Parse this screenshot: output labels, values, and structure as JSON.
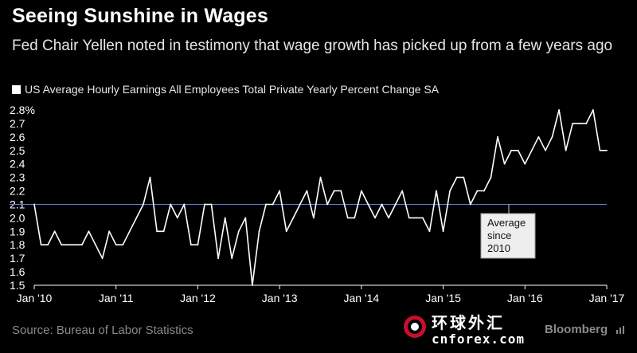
{
  "header": {
    "title": "Seeing Sunshine in Wages",
    "subtitle": "Fed Chair Yellen noted in testimony that wage growth has picked up from a few years ago"
  },
  "footer": {
    "source": "Source: Bureau of Labor Statistics",
    "brand": "Bloomberg"
  },
  "watermark": {
    "chinese": "环球外汇",
    "url": "cnforex.com"
  },
  "colors": {
    "background": "#000000",
    "line": "#ffffff",
    "average_line": "#5b7fd6",
    "text_muted": "#8a8a8a"
  },
  "chart_data": {
    "type": "line",
    "legend": "US Average Hourly Earnings All Employees Total Private Yearly Percent Change SA",
    "legend_position": "top-left",
    "grid": false,
    "x_tick_labels": [
      "Jan '10",
      "Jan '11",
      "Jan '12",
      "Jan '13",
      "Jan '14",
      "Jan '15",
      "Jan '16",
      "Jan '17"
    ],
    "y_tick_labels": [
      "1.5",
      "1.6",
      "1.7",
      "1.8",
      "1.9",
      "2.0",
      "2.1",
      "2.2",
      "2.3",
      "2.4",
      "2.5",
      "2.6",
      "2.7",
      "2.8%"
    ],
    "ylim": [
      1.5,
      2.8
    ],
    "xlim": [
      "2010-01",
      "2017-01"
    ],
    "series": [
      {
        "name": "US Average Hourly Earnings All Employees Total Private Yearly Percent Change SA",
        "x": [
          "2010-01",
          "2010-02",
          "2010-03",
          "2010-04",
          "2010-05",
          "2010-06",
          "2010-07",
          "2010-08",
          "2010-09",
          "2010-10",
          "2010-11",
          "2010-12",
          "2011-01",
          "2011-02",
          "2011-03",
          "2011-04",
          "2011-05",
          "2011-06",
          "2011-07",
          "2011-08",
          "2011-09",
          "2011-10",
          "2011-11",
          "2011-12",
          "2012-01",
          "2012-02",
          "2012-03",
          "2012-04",
          "2012-05",
          "2012-06",
          "2012-07",
          "2012-08",
          "2012-09",
          "2012-10",
          "2012-11",
          "2012-12",
          "2013-01",
          "2013-02",
          "2013-03",
          "2013-04",
          "2013-05",
          "2013-06",
          "2013-07",
          "2013-08",
          "2013-09",
          "2013-10",
          "2013-11",
          "2013-12",
          "2014-01",
          "2014-02",
          "2014-03",
          "2014-04",
          "2014-05",
          "2014-06",
          "2014-07",
          "2014-08",
          "2014-09",
          "2014-10",
          "2014-11",
          "2014-12",
          "2015-01",
          "2015-02",
          "2015-03",
          "2015-04",
          "2015-05",
          "2015-06",
          "2015-07",
          "2015-08",
          "2015-09",
          "2015-10",
          "2015-11",
          "2015-12",
          "2016-01",
          "2016-02",
          "2016-03",
          "2016-04",
          "2016-05",
          "2016-06",
          "2016-07",
          "2016-08",
          "2016-09",
          "2016-10",
          "2016-11",
          "2016-12",
          "2017-01"
        ],
        "values": [
          2.1,
          1.8,
          1.8,
          1.9,
          1.8,
          1.8,
          1.8,
          1.8,
          1.9,
          1.8,
          1.7,
          1.9,
          1.8,
          1.8,
          1.9,
          2.0,
          2.1,
          2.3,
          1.9,
          1.9,
          2.1,
          2.0,
          2.1,
          1.8,
          1.8,
          2.1,
          2.1,
          1.7,
          2.0,
          1.7,
          1.9,
          2.0,
          1.5,
          1.9,
          2.1,
          2.1,
          2.2,
          1.9,
          2.0,
          2.1,
          2.2,
          2.0,
          2.3,
          2.1,
          2.2,
          2.2,
          2.0,
          2.0,
          2.2,
          2.1,
          2.0,
          2.1,
          2.0,
          2.1,
          2.2,
          2.0,
          2.0,
          2.0,
          1.9,
          2.2,
          1.9,
          2.2,
          2.3,
          2.3,
          2.1,
          2.2,
          2.2,
          2.3,
          2.6,
          2.4,
          2.5,
          2.5,
          2.4,
          2.5,
          2.6,
          2.5,
          2.6,
          2.8,
          2.5,
          2.7,
          2.7,
          2.7,
          2.8,
          2.5,
          2.5
        ]
      }
    ],
    "reference_line": {
      "value": 2.1,
      "annotation": [
        "Average",
        "since",
        "2010"
      ]
    }
  }
}
